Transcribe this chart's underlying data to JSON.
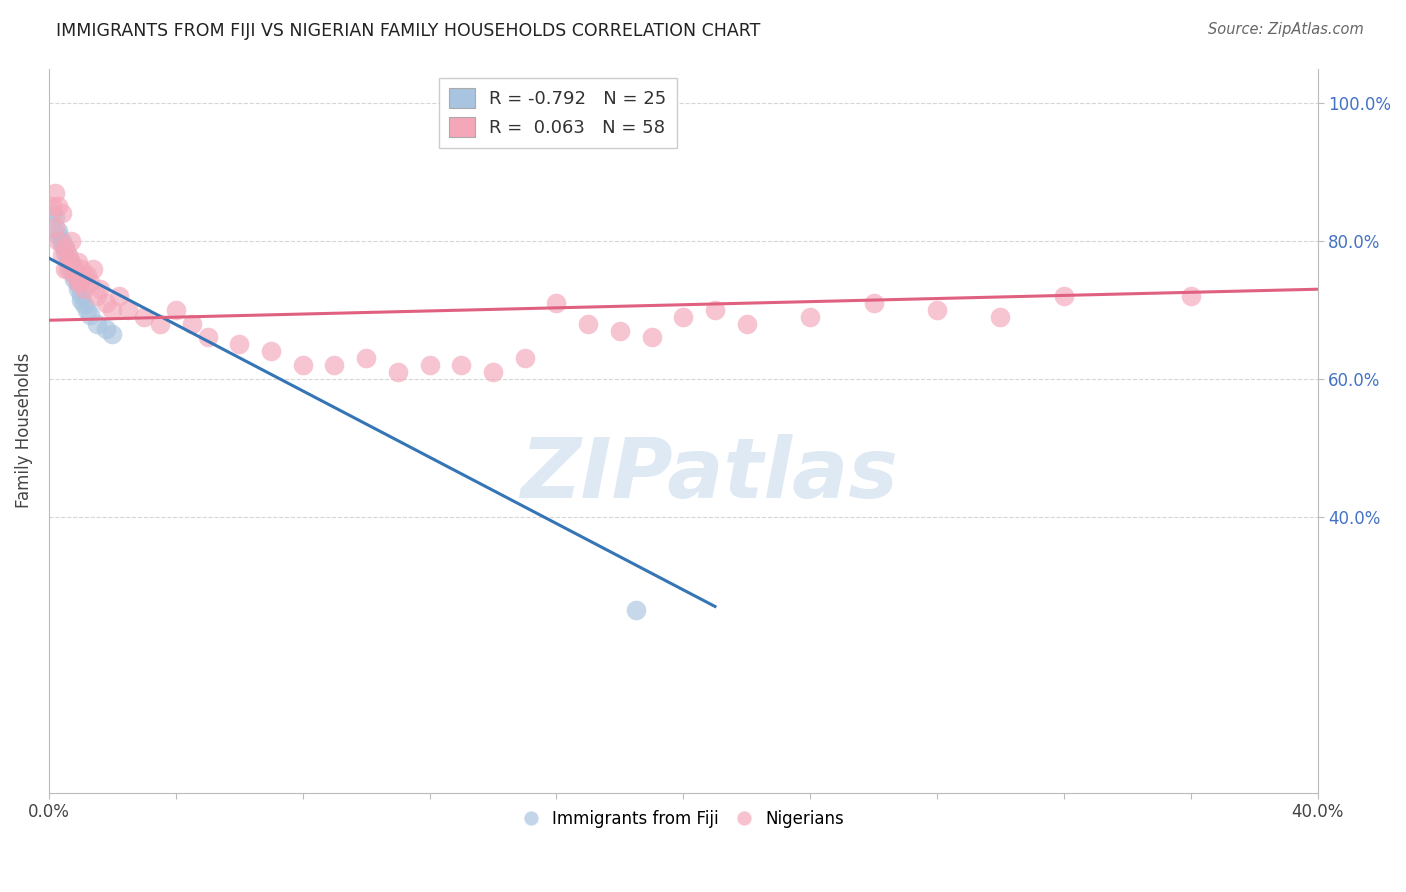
{
  "title": "IMMIGRANTS FROM FIJI VS NIGERIAN FAMILY HOUSEHOLDS CORRELATION CHART",
  "source": "Source: ZipAtlas.com",
  "ylabel": "Family Households",
  "xlim": [
    0.0,
    0.4
  ],
  "ylim": [
    0.0,
    1.05
  ],
  "fiji_color": "#a8c4e0",
  "fiji_line_color": "#3575b5",
  "nigeria_color": "#f4a7b9",
  "nigeria_line_color": "#e06080",
  "fiji_R": -0.792,
  "fiji_N": 25,
  "nigeria_R": 0.063,
  "nigeria_N": 58,
  "fiji_scatter_x": [
    0.001,
    0.002,
    0.003,
    0.003,
    0.004,
    0.004,
    0.005,
    0.005,
    0.006,
    0.006,
    0.007,
    0.007,
    0.008,
    0.008,
    0.009,
    0.009,
    0.01,
    0.01,
    0.011,
    0.012,
    0.013,
    0.015,
    0.018,
    0.02,
    0.185
  ],
  "fiji_scatter_y": [
    0.84,
    0.835,
    0.815,
    0.808,
    0.8,
    0.795,
    0.79,
    0.783,
    0.778,
    0.77,
    0.768,
    0.758,
    0.752,
    0.745,
    0.738,
    0.73,
    0.722,
    0.715,
    0.708,
    0.7,
    0.692,
    0.68,
    0.672,
    0.665,
    0.265
  ],
  "nigeria_scatter_x": [
    0.001,
    0.002,
    0.002,
    0.003,
    0.003,
    0.004,
    0.004,
    0.005,
    0.005,
    0.006,
    0.006,
    0.007,
    0.007,
    0.008,
    0.008,
    0.009,
    0.009,
    0.01,
    0.01,
    0.011,
    0.011,
    0.012,
    0.013,
    0.014,
    0.015,
    0.016,
    0.018,
    0.02,
    0.022,
    0.025,
    0.03,
    0.035,
    0.04,
    0.045,
    0.05,
    0.06,
    0.07,
    0.08,
    0.09,
    0.1,
    0.11,
    0.12,
    0.13,
    0.14,
    0.15,
    0.16,
    0.17,
    0.18,
    0.19,
    0.2,
    0.21,
    0.22,
    0.24,
    0.26,
    0.28,
    0.3,
    0.32,
    0.36
  ],
  "nigeria_scatter_y": [
    0.85,
    0.87,
    0.82,
    0.85,
    0.8,
    0.84,
    0.78,
    0.79,
    0.76,
    0.78,
    0.76,
    0.8,
    0.77,
    0.76,
    0.75,
    0.77,
    0.74,
    0.76,
    0.74,
    0.75,
    0.73,
    0.75,
    0.74,
    0.76,
    0.72,
    0.73,
    0.71,
    0.7,
    0.72,
    0.7,
    0.69,
    0.68,
    0.7,
    0.68,
    0.66,
    0.65,
    0.64,
    0.62,
    0.62,
    0.63,
    0.61,
    0.62,
    0.62,
    0.61,
    0.63,
    0.71,
    0.68,
    0.67,
    0.66,
    0.69,
    0.7,
    0.68,
    0.69,
    0.71,
    0.7,
    0.69,
    0.72,
    0.72
  ],
  "watermark_text": "ZIPatlas",
  "right_axis_color": "#4472c4",
  "grid_color": "#cccccc",
  "fiji_line_x0": 0.0,
  "fiji_line_x1": 0.21,
  "fiji_line_y0": 0.775,
  "fiji_line_y1": 0.27,
  "nigeria_line_x0": 0.0,
  "nigeria_line_x1": 0.4,
  "nigeria_line_y0": 0.685,
  "nigeria_line_y1": 0.73
}
